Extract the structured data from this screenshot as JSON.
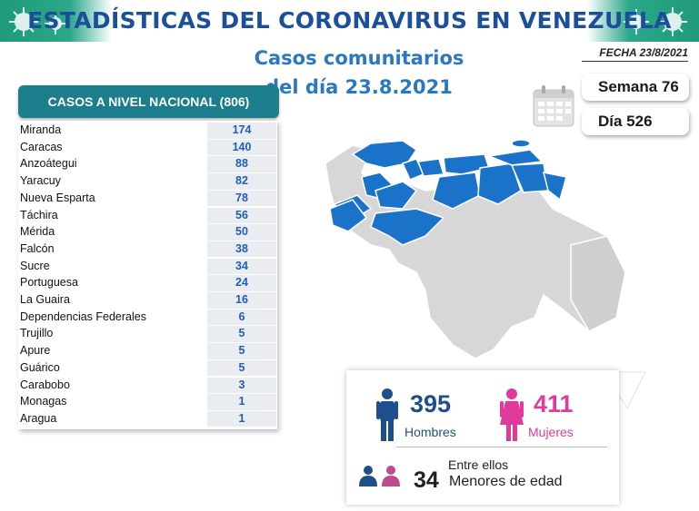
{
  "banner": {
    "title": "ESTADÍSTICAS DEL CORONAVIRUS EN VENEZUELA"
  },
  "header": {
    "line1": "Casos comunitarios",
    "line2": "del día 23.8.2021",
    "fecha": "FECHA 23/8/2021"
  },
  "counters": {
    "semana": "Semana 76",
    "dia": "Día 526"
  },
  "table": {
    "title": "CASOS A NIVEL NACIONAL (806)",
    "rows": [
      {
        "name": "Miranda",
        "value": "174"
      },
      {
        "name": "Caracas",
        "value": "140"
      },
      {
        "name": "Anzoátegui",
        "value": "88"
      },
      {
        "name": "Yaracuy",
        "value": "82"
      },
      {
        "name": "Nueva Esparta",
        "value": "78"
      },
      {
        "name": "Táchira",
        "value": "56"
      },
      {
        "name": "Mérida",
        "value": "50"
      },
      {
        "name": "Falcón",
        "value": "38"
      },
      {
        "name": "Sucre",
        "value": "34"
      },
      {
        "name": "Portuguesa",
        "value": "24"
      },
      {
        "name": "La Guaira",
        "value": "16"
      },
      {
        "name": "Dependencias Federales",
        "value": "6"
      },
      {
        "name": "Trujillo",
        "value": "5"
      },
      {
        "name": "Apure",
        "value": "5"
      },
      {
        "name": "Guárico",
        "value": "5"
      },
      {
        "name": "Carabobo",
        "value": "3"
      },
      {
        "name": "Monagas",
        "value": "1"
      },
      {
        "name": "Aragua",
        "value": "1"
      }
    ]
  },
  "stats": {
    "hombres_count": "395",
    "hombres_label": "Hombres",
    "mujeres_count": "411",
    "mujeres_label": "Mujeres",
    "entre": "Entre ellos",
    "menores_count": "34",
    "menores_label": "Menores de edad"
  },
  "icons": {
    "virus": "virus-icon",
    "calendar": "calendar-icon",
    "man": "man-icon",
    "woman": "woman-icon",
    "children": "children-icon",
    "map": "venezuela-map"
  },
  "colors": {
    "banner_green": "#1f9a7a",
    "title_blue": "#1b4f9c",
    "subtitle_blue": "#2a78c2",
    "table_header": "#1c7d8c",
    "value_blue": "#1f5fae",
    "map_highlight": "#1a73c8",
    "map_gray": "#d7d7d7",
    "men": "#1f4f8a",
    "women": "#e03a9b"
  }
}
